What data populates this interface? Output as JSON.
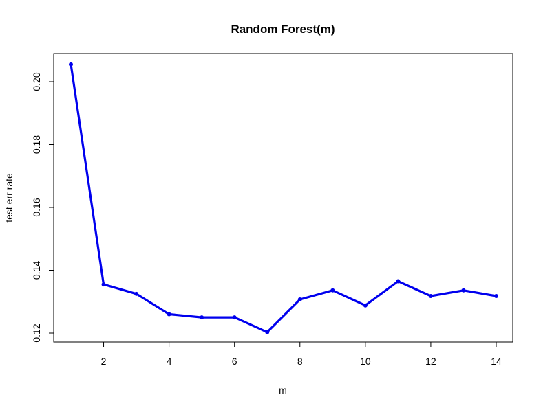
{
  "chart_data": {
    "type": "line",
    "title": "Random Forest(m)",
    "xlabel": "m",
    "ylabel": "test err rate",
    "x": [
      1,
      2,
      3,
      4,
      5,
      6,
      7,
      8,
      9,
      10,
      11,
      12,
      13,
      14
    ],
    "values": [
      0.2055,
      0.1355,
      0.1325,
      0.126,
      0.125,
      0.125,
      0.1203,
      0.1307,
      0.1336,
      0.1288,
      0.1365,
      0.1318,
      0.1336,
      0.1318
    ],
    "xlim": [
      1,
      14
    ],
    "ylim": [
      0.12,
      0.2
    ],
    "xticks": [
      "2",
      "4",
      "6",
      "8",
      "10",
      "12",
      "14"
    ],
    "yticks": [
      "0.12",
      "0.14",
      "0.16",
      "0.18",
      "0.20"
    ],
    "line_color": "#0000ee",
    "grid": false,
    "legend": "none"
  }
}
